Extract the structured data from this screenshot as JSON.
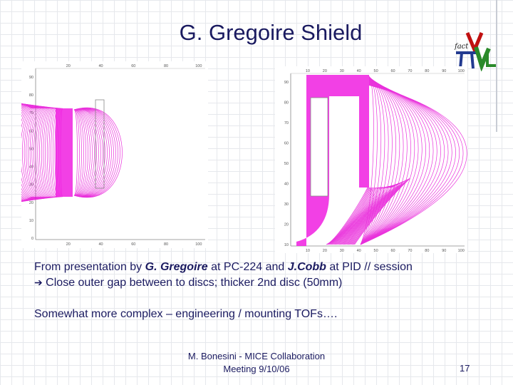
{
  "slide": {
    "title": "G. Gregoire Shield",
    "logo_text": "fact",
    "caption_line1": {
      "prefix": "From presentation by ",
      "author1": "G. Gregoire",
      "mid1": " at PC-224 and ",
      "author2": "J.Cobb",
      "suffix": " at PID // session"
    },
    "caption_line2": {
      "arrow": "➔",
      "text": " Close outer gap between to discs; thicker 2nd disc (50mm)"
    },
    "caption_line3": "Somewhat more complex – engineering / mounting TOFs….",
    "footer_line1": "M. Bonesini - MICE Collaboration",
    "footer_line2": "Meeting 9/10/06",
    "page_number": "17"
  },
  "colors": {
    "title": "#1a1a60",
    "field_lines": "#e60fd6",
    "iron": "#f01ee0"
  },
  "plot_left": {
    "x_ticks_top": [
      "20",
      "40",
      "60",
      "80",
      "100"
    ],
    "x_ticks_bottom": [
      "20",
      "40",
      "60",
      "80",
      "100"
    ],
    "y_ticks": [
      "90",
      "80",
      "70",
      "60",
      "50",
      "40",
      "30",
      "20",
      "10",
      "0"
    ]
  },
  "plot_right": {
    "x_ticks_top": [
      "10",
      "20",
      "30",
      "40",
      "50",
      "60",
      "70",
      "80",
      "90",
      "100"
    ],
    "x_ticks_bottom": [
      "10",
      "20",
      "30",
      "40",
      "50",
      "60",
      "70",
      "80",
      "90",
      "100"
    ],
    "y_ticks": [
      "90",
      "80",
      "70",
      "60",
      "50",
      "40",
      "30",
      "20",
      "10"
    ]
  }
}
